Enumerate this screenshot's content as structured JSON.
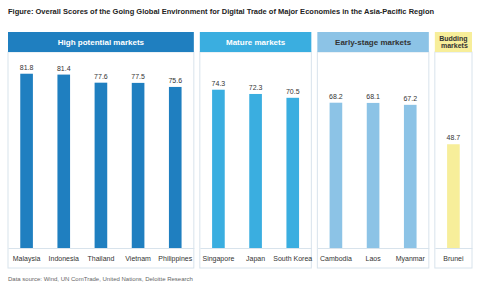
{
  "chart_data": {
    "type": "bar",
    "title": "Figure: Overall Scores of the Going Global Environment for Digital Trade of Major Economies in the Asia-Pacific Region",
    "source": "Data source: Wind, UN ComTrade, United Nations, Deloitte Research",
    "series": [
      {
        "name": "High potential markets",
        "color": "#1f7fc0",
        "categories": [
          "Malaysia",
          "Indonesia",
          "Thailand",
          "Vietnam",
          "Philippines"
        ],
        "values": [
          81.8,
          81.4,
          77.6,
          77.5,
          75.6
        ]
      },
      {
        "name": "Mature markets",
        "color": "#3aaee0",
        "categories": [
          "Singapore",
          "Japan",
          "South Korea"
        ],
        "values": [
          74.3,
          72.3,
          70.5
        ]
      },
      {
        "name": "Early-stage markets",
        "color": "#8cc3e6",
        "categories": [
          "Cambodia",
          "Laos",
          "Myanmar"
        ],
        "values": [
          68.2,
          68.1,
          67.2
        ]
      },
      {
        "name": "Budding markets",
        "color": "#f7ee9a",
        "categories": [
          "Brunei"
        ],
        "values": [
          48.7
        ]
      }
    ],
    "ylim": [
      0,
      92
    ],
    "data_labels": true,
    "tick_labels": "x"
  }
}
